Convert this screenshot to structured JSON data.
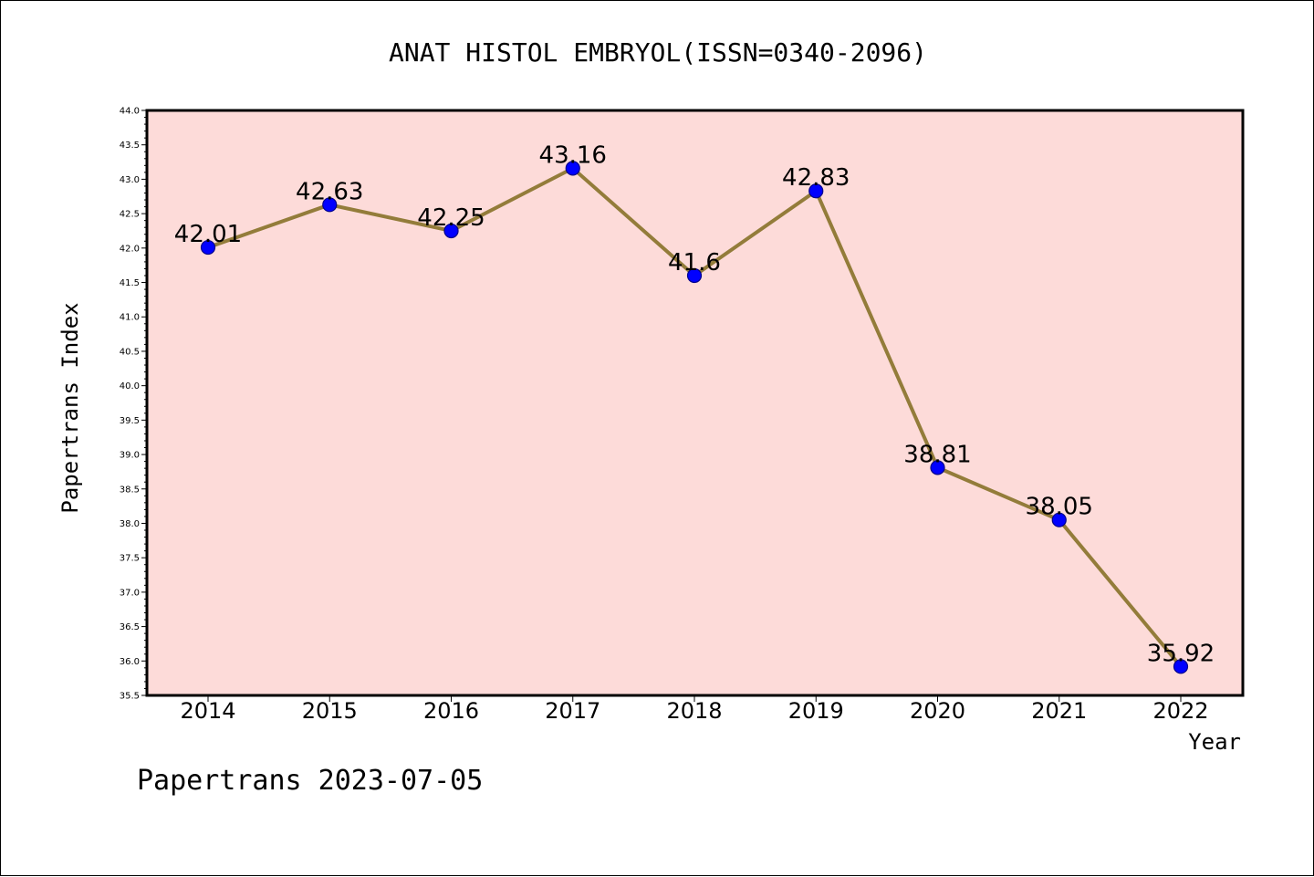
{
  "chart_data": {
    "type": "line",
    "title": "ANAT HISTOL EMBRYOL(ISSN=0340-2096)",
    "xlabel": "Year",
    "ylabel": "Papertrans Index",
    "categories": [
      "2014",
      "2015",
      "2016",
      "2017",
      "2018",
      "2019",
      "2020",
      "2021",
      "2022"
    ],
    "series": [
      {
        "values": [
          42.01,
          42.63,
          42.25,
          43.16,
          41.6,
          42.83,
          38.81,
          38.05,
          35.92
        ],
        "labels": [
          "42.01",
          "42.63",
          "42.25",
          "43.16",
          "41.6",
          "42.83",
          "38.81",
          "38.05",
          "35.92"
        ],
        "line_color": "#937c3a",
        "marker_color": "#0000ff"
      }
    ],
    "ylim": [
      35.5,
      44.0
    ],
    "ytick_step": 0.5,
    "plot_background": "#fddbd9",
    "grid": false,
    "legend": "none"
  },
  "footer": "Papertrans 2023-07-05"
}
